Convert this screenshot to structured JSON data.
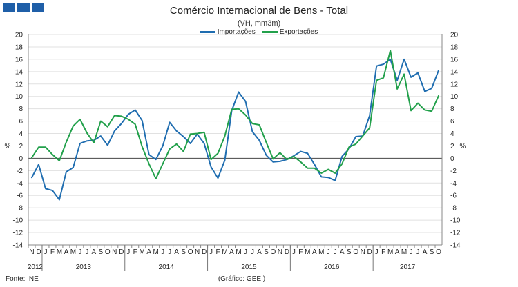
{
  "title": "Comércio Internacional de Bens - Total",
  "subtitle": "(VH, mm3m)",
  "footer_source": "Fonte: INE",
  "footer_credit": "(Gráfico:  GEE )",
  "legend": [
    {
      "name": "Importações",
      "color": "#1f6db0"
    },
    {
      "name": "Exportações",
      "color": "#22a04b"
    }
  ],
  "logo_color": "#1f5fa8",
  "chart_data": {
    "type": "line",
    "ylabel_left": "%",
    "ylabel_right": "%",
    "ylim": [
      -14,
      20
    ],
    "yticks": [
      -14,
      -12,
      -10,
      -8,
      -6,
      -4,
      -2,
      0,
      2,
      4,
      6,
      8,
      10,
      12,
      14,
      16,
      18,
      20
    ],
    "grid": "horizontal",
    "legend_position": "top-center",
    "x_month_labels": [
      "N",
      "D",
      "J",
      "F",
      "M",
      "A",
      "M",
      "J",
      "J",
      "A",
      "S",
      "O",
      "N",
      "D",
      "J",
      "F",
      "M",
      "A",
      "M",
      "J",
      "J",
      "A",
      "S",
      "O",
      "N",
      "D",
      "J",
      "F",
      "M",
      "A",
      "M",
      "J",
      "J",
      "A",
      "S",
      "O",
      "N",
      "D",
      "J",
      "F",
      "M",
      "A",
      "M",
      "J",
      "J",
      "A",
      "S",
      "O",
      "N",
      "D",
      "J",
      "F",
      "M",
      "A",
      "M",
      "J",
      "J",
      "A",
      "S",
      "O"
    ],
    "year_labels": [
      {
        "label": "2012",
        "start": 0,
        "end": 1
      },
      {
        "label": "2013",
        "start": 2,
        "end": 13
      },
      {
        "label": "2014",
        "start": 14,
        "end": 25
      },
      {
        "label": "2015",
        "start": 26,
        "end": 37
      },
      {
        "label": "2016",
        "start": 38,
        "end": 49
      },
      {
        "label": "2017",
        "start": 50,
        "end": 59
      }
    ],
    "series": [
      {
        "name": "Importações",
        "color": "#1f6db0",
        "values": [
          -3.1,
          -1.0,
          -4.9,
          -5.2,
          -6.7,
          -2.2,
          -1.5,
          2.4,
          2.8,
          2.9,
          3.6,
          2.1,
          4.4,
          5.6,
          7.1,
          7.8,
          6.1,
          0.6,
          -0.2,
          2.0,
          5.8,
          4.4,
          3.5,
          2.4,
          3.9,
          2.4,
          -1.4,
          -3.2,
          -0.3,
          7.7,
          10.7,
          9.2,
          4.3,
          2.9,
          0.5,
          -0.6,
          -0.5,
          -0.2,
          0.4,
          1.1,
          0.8,
          -1.0,
          -3.0,
          -3.1,
          -3.6,
          0.3,
          1.5,
          3.5,
          3.6,
          6.9,
          14.9,
          15.2,
          16.0,
          12.6,
          16.0,
          13.1,
          13.8,
          10.8,
          11.3,
          14.2
        ]
      },
      {
        "name": "Exportações",
        "color": "#22a04b",
        "values": [
          0.1,
          1.8,
          1.8,
          0.6,
          -0.4,
          2.6,
          5.2,
          6.3,
          4.1,
          2.5,
          6.0,
          5.1,
          6.9,
          6.8,
          6.3,
          5.5,
          1.9,
          -0.9,
          -3.3,
          -0.9,
          1.5,
          2.3,
          1.1,
          3.9,
          4.0,
          4.2,
          -0.2,
          0.8,
          3.6,
          7.9,
          8.0,
          7.0,
          5.6,
          5.4,
          2.6,
          -0.1,
          0.9,
          -0.2,
          0.3,
          -0.6,
          -1.6,
          -1.6,
          -2.4,
          -1.8,
          -2.4,
          -0.9,
          1.8,
          2.3,
          3.6,
          4.9,
          12.6,
          13.0,
          17.4,
          11.2,
          13.6,
          7.7,
          8.9,
          7.8,
          7.6,
          10.1
        ]
      }
    ]
  }
}
